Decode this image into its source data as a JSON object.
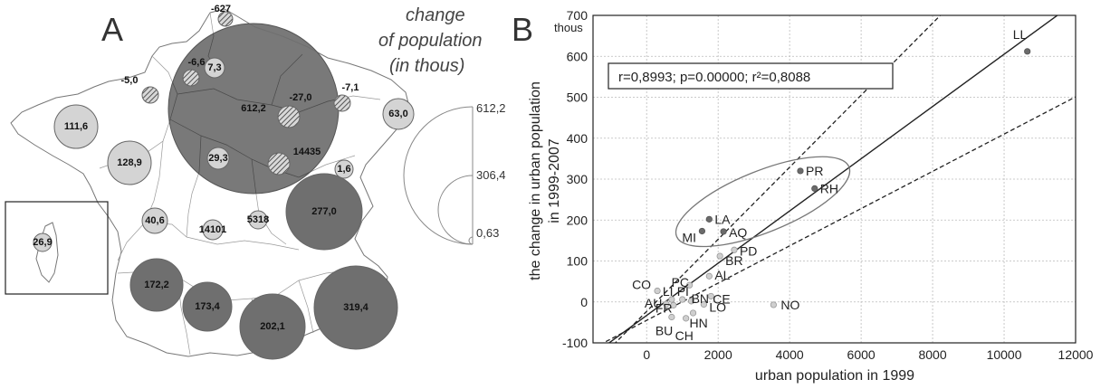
{
  "panel_a": {
    "letter": "A",
    "legend": {
      "title_lines": [
        "change",
        "of population",
        "(in thous)"
      ],
      "values": [
        "612,2",
        "306,4",
        "0,63"
      ]
    },
    "circles": [
      {
        "label": "612,2",
        "kind": "large"
      },
      {
        "label": "7,3",
        "kind": "light"
      },
      {
        "label": "29,3",
        "kind": "light"
      },
      {
        "label": "111,6",
        "kind": "light"
      },
      {
        "label": "128,9",
        "kind": "light"
      },
      {
        "label": "63,0",
        "kind": "light"
      },
      {
        "label": "1,6",
        "kind": "light"
      },
      {
        "label": "40,6",
        "kind": "light"
      },
      {
        "label": "14101",
        "kind": "light"
      },
      {
        "label": "5318",
        "kind": "light"
      },
      {
        "label": "26,9",
        "kind": "light"
      },
      {
        "label": "277,0",
        "kind": "dark"
      },
      {
        "label": "172,2",
        "kind": "dark"
      },
      {
        "label": "173,4",
        "kind": "dark"
      },
      {
        "label": "202,1",
        "kind": "dark"
      },
      {
        "label": "319,4",
        "kind": "dark"
      },
      {
        "label": "-627",
        "kind": "hatched"
      },
      {
        "label": "-6,6",
        "kind": "hatched"
      },
      {
        "label": "-5,0",
        "kind": "hatched"
      },
      {
        "label": "-27,0",
        "kind": "hatched"
      },
      {
        "label": "-7,1",
        "kind": "hatched"
      },
      {
        "label": "14435",
        "kind": "hatched"
      }
    ],
    "colors": {
      "dark": "#6f6f6f",
      "light": "#d4d4d4",
      "hatched_fill": "#cfcfcf"
    }
  },
  "panel_b": {
    "letter": "B",
    "y_unit": "thous",
    "stats": "r=0,8993; p=0.00000; r²=0,8088"
  },
  "chart_data": {
    "type": "scatter",
    "xlabel": "urban population in 1999",
    "ylabel_lines": [
      "the change in urban population",
      "in 1999-2007"
    ],
    "xlim": [
      -1500,
      12000
    ],
    "ylim": [
      -100,
      700
    ],
    "xticks": [
      0,
      2000,
      4000,
      6000,
      8000,
      10000,
      12000
    ],
    "yticks": [
      -100,
      0,
      100,
      200,
      300,
      400,
      500,
      600,
      700
    ],
    "grid": true,
    "points": [
      {
        "label": "LL",
        "x": 10650,
        "y": 612,
        "group": "dark"
      },
      {
        "label": "PR",
        "x": 4300,
        "y": 320,
        "group": "dark"
      },
      {
        "label": "RH",
        "x": 4700,
        "y": 277,
        "group": "dark"
      },
      {
        "label": "LA",
        "x": 1750,
        "y": 202,
        "group": "dark"
      },
      {
        "label": "AQ",
        "x": 2150,
        "y": 172,
        "group": "dark"
      },
      {
        "label": "MI",
        "x": 1550,
        "y": 173,
        "group": "dark"
      },
      {
        "label": "PD",
        "x": 2450,
        "y": 127,
        "group": "light"
      },
      {
        "label": "BR",
        "x": 2050,
        "y": 112,
        "group": "light"
      },
      {
        "label": "AL",
        "x": 1750,
        "y": 63,
        "group": "light"
      },
      {
        "label": "PC",
        "x": 1200,
        "y": 41,
        "group": "light"
      },
      {
        "label": "CO",
        "x": 300,
        "y": 27,
        "group": "light"
      },
      {
        "label": "CE",
        "x": 1800,
        "y": 14,
        "group": "light"
      },
      {
        "label": "LI",
        "x": 700,
        "y": 6,
        "group": "light"
      },
      {
        "label": "PI",
        "x": 1000,
        "y": 6,
        "group": "light"
      },
      {
        "label": "BN",
        "x": 1250,
        "y": 2,
        "group": "light"
      },
      {
        "label": "AU",
        "x": 550,
        "y": -5,
        "group": "light"
      },
      {
        "label": "FR",
        "x": 750,
        "y": -8,
        "group": "light"
      },
      {
        "label": "LO",
        "x": 1600,
        "y": -6,
        "group": "light"
      },
      {
        "label": "NO",
        "x": 3550,
        "y": -7,
        "group": "light"
      },
      {
        "label": "HN",
        "x": 1300,
        "y": -27,
        "group": "light"
      },
      {
        "label": "BU",
        "x": 700,
        "y": -37,
        "group": "light"
      },
      {
        "label": "CH",
        "x": 1100,
        "y": -40,
        "group": "light"
      }
    ],
    "regression": {
      "slope": 0.0638,
      "intercept": -33
    },
    "ci_upper": {
      "slope": 0.088,
      "intercept": -23
    },
    "ci_lower": {
      "slope": 0.0455,
      "intercept": -45
    },
    "ellipse": {
      "cx": 3250,
      "cy": 245,
      "rx": 2600,
      "ry": 34,
      "angle_deg": -22
    },
    "colors": {
      "dark": "#6b6b6b",
      "light": "#cfcfcf"
    }
  }
}
